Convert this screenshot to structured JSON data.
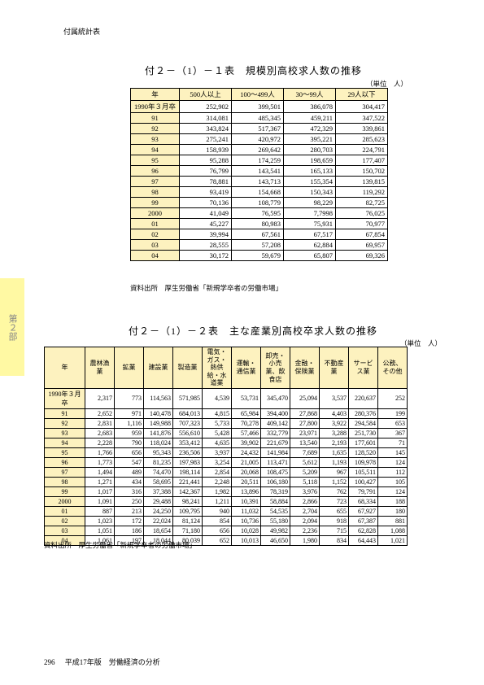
{
  "header": {
    "section": "付属統計表"
  },
  "sidetab": {
    "label": "第２部"
  },
  "footer": {
    "page": "296",
    "text": "平成17年版　労働経済の分析"
  },
  "table1": {
    "title": "付２－（1）－１表　規模別高校求人数の推移",
    "unit": "（単位　人）",
    "source": "資料出所　厚生労働省「新規学卒者の労働市場」",
    "columns": [
      "年",
      "500人以上",
      "100～499人",
      "30～99人",
      "29人以下"
    ],
    "rows": [
      [
        "1990年３月卒",
        "252,902",
        "399,501",
        "386,078",
        "304,417"
      ],
      [
        "91",
        "314,081",
        "485,345",
        "459,211",
        "347,522"
      ],
      [
        "92",
        "343,824",
        "517,367",
        "472,329",
        "339,861"
      ],
      [
        "93",
        "275,241",
        "420,972",
        "395,221",
        "285,623"
      ],
      [
        "94",
        "158,939",
        "269,642",
        "280,703",
        "224,791"
      ],
      [
        "95",
        "95,288",
        "174,259",
        "198,659",
        "177,407"
      ],
      [
        "96",
        "76,799",
        "143,541",
        "165,133",
        "150,702"
      ],
      [
        "97",
        "78,881",
        "143,713",
        "155,354",
        "139,815"
      ],
      [
        "98",
        "93,419",
        "154,668",
        "150,343",
        "119,292"
      ],
      [
        "99",
        "70,136",
        "108,779",
        "98,229",
        "82,725"
      ],
      [
        "2000",
        "41,049",
        "76,595",
        "7,7998",
        "76,025"
      ],
      [
        "01",
        "45,227",
        "80,983",
        "75,931",
        "70,977"
      ],
      [
        "02",
        "39,994",
        "67,561",
        "67,517",
        "67,854"
      ],
      [
        "03",
        "28,555",
        "57,208",
        "62,884",
        "69,957"
      ],
      [
        "04",
        "30,172",
        "59,679",
        "65,807",
        "69,326"
      ]
    ]
  },
  "table2": {
    "title": "付２－（1）－２表　主な産業別高校卒求人数の推移",
    "unit": "（単位　人）",
    "source": "資料出所　厚生労働省「新規学卒者の労働市場」",
    "columns": [
      "年",
      "農林漁業",
      "鉱業",
      "建設業",
      "製造業",
      "電気・ガス・熱供給・水道業",
      "運輸・通信業",
      "卸売・小売業、飲食店",
      "金融・保険業",
      "不動産業",
      "サービス業",
      "公務、その他"
    ],
    "rows": [
      [
        "1990年３月卒",
        "2,317",
        "773",
        "114,563",
        "571,985",
        "4,539",
        "53,731",
        "345,470",
        "25,094",
        "3,537",
        "220,637",
        "252"
      ],
      [
        "91",
        "2,652",
        "971",
        "140,478",
        "684,013",
        "4,815",
        "65,984",
        "394,400",
        "27,868",
        "4,403",
        "280,376",
        "199"
      ],
      [
        "92",
        "2,831",
        "1,116",
        "149,988",
        "707,323",
        "5,733",
        "70,278",
        "409,142",
        "27,800",
        "3,922",
        "294,584",
        "653"
      ],
      [
        "93",
        "2,683",
        "959",
        "141,876",
        "556,610",
        "5,428",
        "57,466",
        "332,779",
        "23,971",
        "3,288",
        "251,730",
        "367"
      ],
      [
        "94",
        "2,228",
        "790",
        "118,024",
        "353,412",
        "4,635",
        "39,902",
        "221,679",
        "13,540",
        "2,193",
        "177,601",
        "71"
      ],
      [
        "95",
        "1,766",
        "656",
        "95,343",
        "236,506",
        "3,937",
        "24,432",
        "141,984",
        "7,689",
        "1,635",
        "128,520",
        "145"
      ],
      [
        "96",
        "1,773",
        "547",
        "81,235",
        "197,983",
        "3,254",
        "21,005",
        "113,471",
        "5,612",
        "1,193",
        "109,978",
        "124"
      ],
      [
        "97",
        "1,494",
        "489",
        "74,470",
        "198,114",
        "2,854",
        "20,068",
        "108,475",
        "5,209",
        "967",
        "105,511",
        "112"
      ],
      [
        "98",
        "1,271",
        "434",
        "58,695",
        "221,441",
        "2,248",
        "20,511",
        "106,180",
        "5,118",
        "1,152",
        "100,427",
        "105"
      ],
      [
        "99",
        "1,017",
        "316",
        "37,388",
        "142,367",
        "1,982",
        "13,896",
        "78,319",
        "3,976",
        "762",
        "79,791",
        "124"
      ],
      [
        "2000",
        "1,091",
        "250",
        "29,488",
        "98,241",
        "1,211",
        "10,391",
        "58,884",
        "2,866",
        "723",
        "68,334",
        "188"
      ],
      [
        "01",
        "887",
        "213",
        "24,250",
        "109,795",
        "940",
        "11,032",
        "54,535",
        "2,704",
        "655",
        "67,927",
        "180"
      ],
      [
        "02",
        "1,023",
        "172",
        "22,024",
        "81,124",
        "854",
        "10,736",
        "55,180",
        "2,094",
        "918",
        "67,387",
        "881"
      ],
      [
        "03",
        "1,051",
        "186",
        "18,654",
        "71,180",
        "656",
        "10,028",
        "49,982",
        "2,236",
        "715",
        "62,828",
        "1,088"
      ],
      [
        "04",
        "1,061",
        "197",
        "18,044",
        "80,039",
        "652",
        "10,013",
        "46,650",
        "1,980",
        "834",
        "64,443",
        "1,021"
      ]
    ]
  }
}
